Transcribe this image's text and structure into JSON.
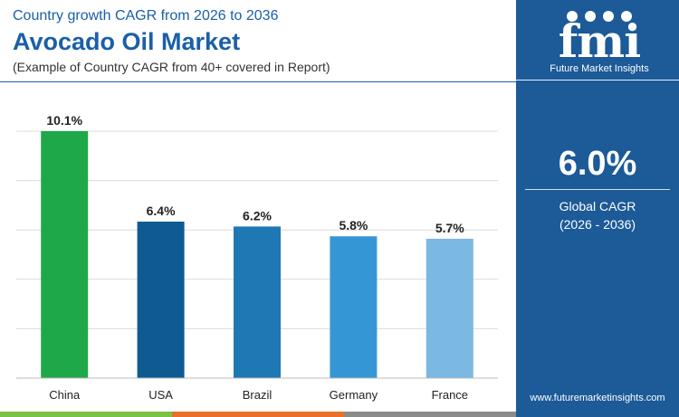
{
  "header": {
    "top_line": "Country growth CAGR from 2026 to 2036",
    "title": "Avocado Oil Market",
    "note": "(Example of Country CAGR from 40+ covered in Report)"
  },
  "brand": {
    "logo_text": "fmi",
    "logo_sub": "Future Market Insights",
    "website": "www.futuremarketinsights.com"
  },
  "stat": {
    "value": "6.0%",
    "label": "Global CAGR",
    "period": "(2026 - 2036)"
  },
  "colors": {
    "title": "#1a5fa8",
    "panel": "#1c5a98",
    "strip": [
      "#7bc143",
      "#e8702a",
      "#8a8a8a"
    ]
  },
  "chart_data": {
    "type": "bar",
    "categories": [
      "China",
      "USA",
      "Brazil",
      "Germany",
      "France"
    ],
    "values": [
      10.1,
      6.4,
      6.2,
      5.8,
      5.7
    ],
    "value_labels": [
      "10.1%",
      "6.4%",
      "6.2%",
      "5.8%",
      "5.7%"
    ],
    "bar_colors": [
      "#1ea84a",
      "#0f5a91",
      "#1e78b4",
      "#3596d6",
      "#7bb8e2"
    ],
    "title": "",
    "xlabel": "",
    "ylabel": "",
    "ylim": [
      0,
      10.1
    ],
    "grid": true,
    "gridlines": 6
  }
}
